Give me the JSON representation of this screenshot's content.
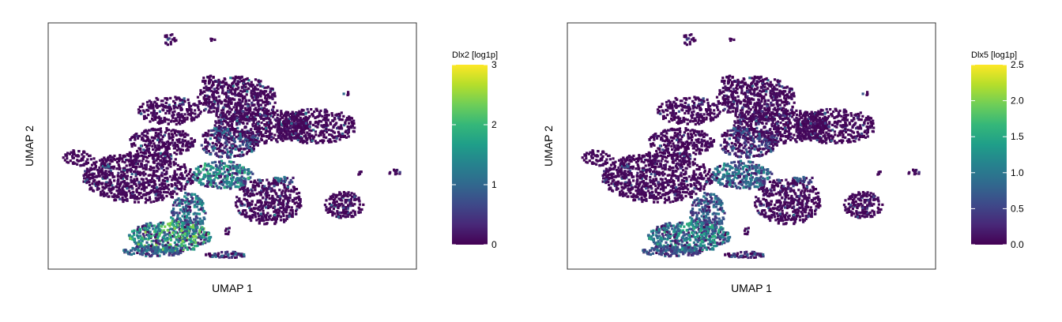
{
  "chart_data": [
    {
      "type": "scatter",
      "title": "",
      "xlabel": "UMAP 1",
      "ylabel": "UMAP 2",
      "legend_title": "Dlx2 [log1p]",
      "legend_placement": "right",
      "color_range": [
        0,
        3
      ],
      "color_ticks": [
        "0",
        "1",
        "2",
        "3"
      ],
      "colorscale": "viridis",
      "grid": false,
      "x_ticks_shown": false,
      "y_ticks_shown": false
    },
    {
      "type": "scatter",
      "title": "",
      "xlabel": "UMAP 1",
      "ylabel": "UMAP 2",
      "legend_title": "Dlx5 [log1p]",
      "legend_placement": "right",
      "color_range": [
        0,
        2.5
      ],
      "color_ticks": [
        "0.0",
        "0.5",
        "1.0",
        "1.5",
        "2.0",
        "2.5"
      ],
      "colorscale": "viridis",
      "grid": false,
      "x_ticks_shown": false,
      "y_ticks_shown": false
    }
  ],
  "colors": {
    "viridis": [
      "#440154",
      "#482878",
      "#3e4989",
      "#31688e",
      "#26828e",
      "#1f9e89",
      "#35b779",
      "#6ece58",
      "#b5de2b",
      "#fde725"
    ],
    "frame": "#333333"
  }
}
